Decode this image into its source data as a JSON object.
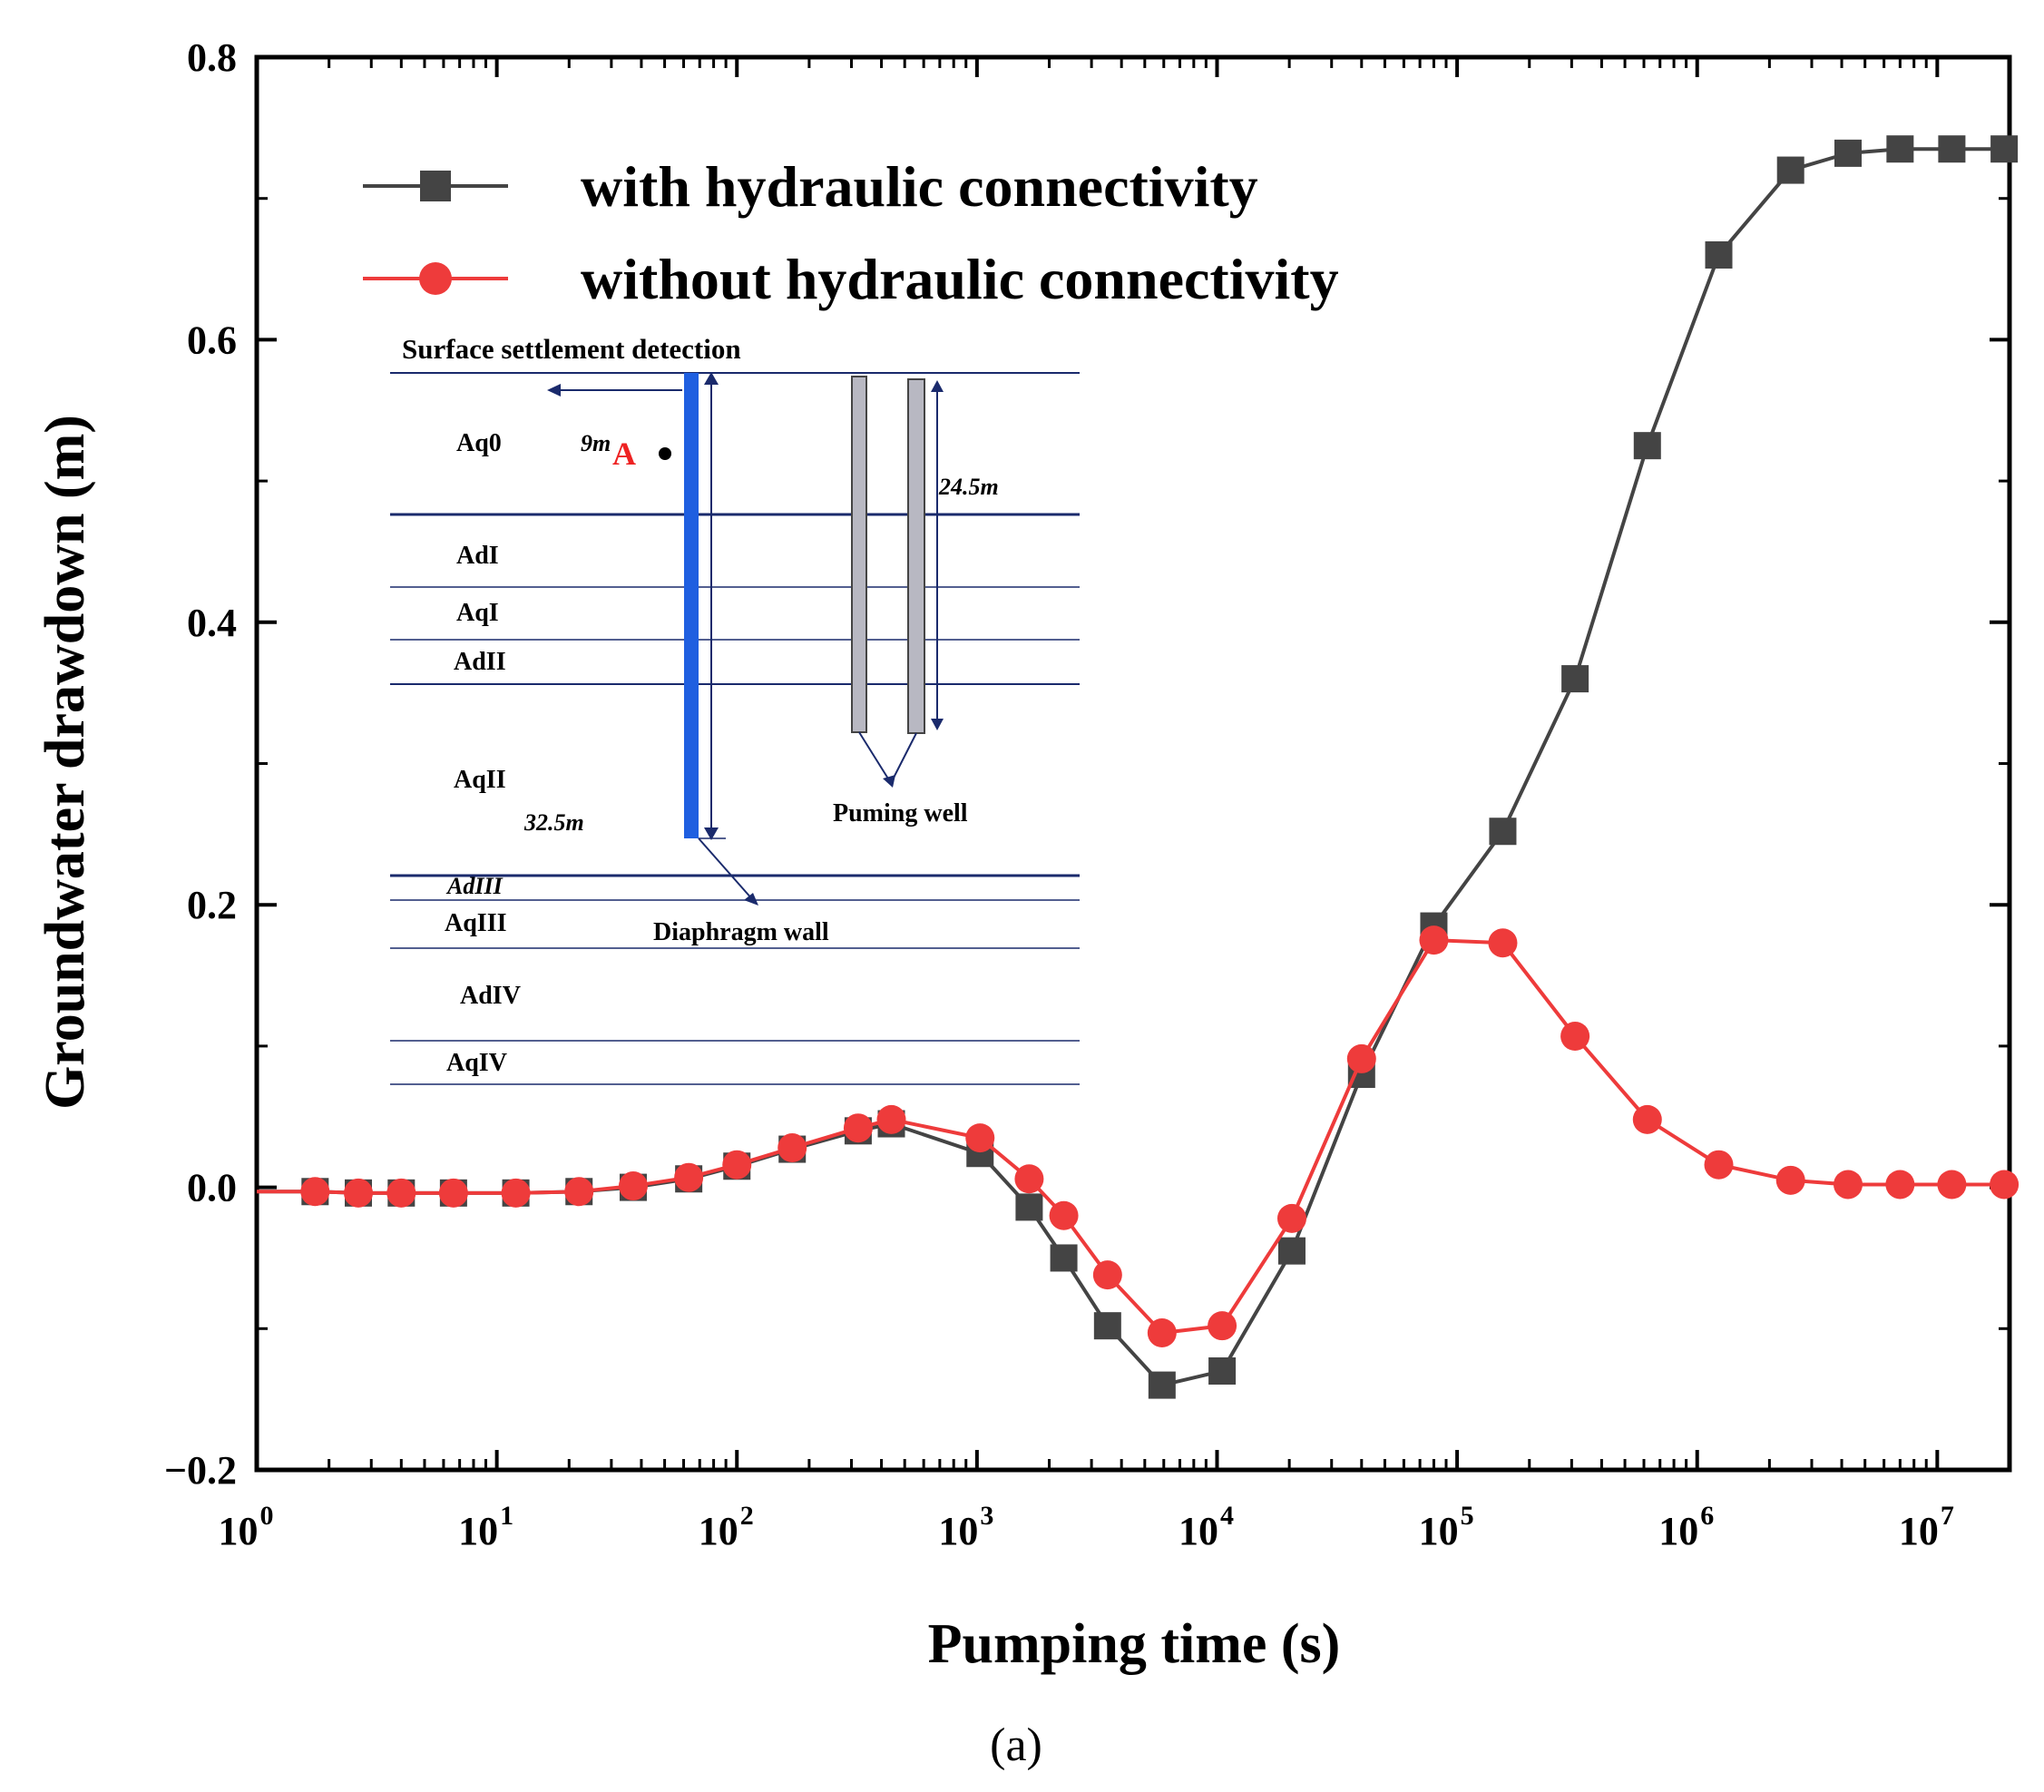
{
  "chart_data": {
    "type": "line",
    "x_scale": "log",
    "xlabel": "Pumping time (s)",
    "ylabel": "Groundwater drawdown (m)",
    "xlim": [
      1,
      20000000
    ],
    "ylim": [
      -0.2,
      0.8
    ],
    "y_ticks": [
      "0.8",
      "0.6",
      "0.4",
      "0.2",
      "0.0",
      "−0.2"
    ],
    "x_ticks": [
      {
        "base": "10",
        "exp": "0"
      },
      {
        "base": "10",
        "exp": "1"
      },
      {
        "base": "10",
        "exp": "2"
      },
      {
        "base": "10",
        "exp": "3"
      },
      {
        "base": "10",
        "exp": "4"
      },
      {
        "base": "10",
        "exp": "5"
      },
      {
        "base": "10",
        "exp": "6"
      },
      {
        "base": "10",
        "exp": "7"
      }
    ],
    "legend_position": "top-left",
    "series": [
      {
        "name": "with hydraulic connectivity",
        "color": "#444444",
        "marker": "square",
        "x": [
          1.75,
          2.65,
          4,
          6.6,
          12,
          22,
          37,
          63,
          100,
          170,
          320,
          440,
          1030,
          1650,
          2300,
          3500,
          5900,
          10500,
          20500,
          40000,
          80000,
          155000,
          310000,
          620000,
          1230000,
          2450000,
          4250000,
          7000000,
          11500000,
          19000000
        ],
        "y": [
          -0.003,
          -0.004,
          -0.004,
          -0.004,
          -0.004,
          -0.003,
          0.0,
          0.006,
          0.015,
          0.027,
          0.04,
          0.045,
          0.024,
          -0.014,
          -0.05,
          -0.098,
          -0.14,
          -0.13,
          -0.045,
          0.08,
          0.185,
          0.252,
          0.36,
          0.525,
          0.66,
          0.72,
          0.732,
          0.735,
          0.735,
          0.735
        ]
      },
      {
        "name": "without hydraulic connectivity",
        "color": "#ee3b3b",
        "marker": "circle",
        "x": [
          1.75,
          2.65,
          4,
          6.6,
          12,
          22,
          37,
          63,
          100,
          170,
          320,
          440,
          1030,
          1650,
          2300,
          3500,
          5900,
          10500,
          20500,
          40000,
          80000,
          155000,
          310000,
          620000,
          1230000,
          2450000,
          4250000,
          7000000,
          11500000,
          19000000
        ],
        "y": [
          -0.003,
          -0.004,
          -0.004,
          -0.004,
          -0.004,
          -0.003,
          0.001,
          0.007,
          0.016,
          0.028,
          0.042,
          0.048,
          0.035,
          0.006,
          -0.02,
          -0.062,
          -0.103,
          -0.098,
          -0.022,
          0.091,
          0.175,
          0.173,
          0.107,
          0.048,
          0.016,
          0.005,
          0.002,
          0.002,
          0.002,
          0.002
        ]
      }
    ]
  },
  "inset": {
    "title": "Surface settlement detection",
    "layers": [
      "Aq0",
      "AdI",
      "AqI",
      "AdII",
      "AqII",
      "AdIII",
      "AqIII",
      "AdIV",
      "AqIV"
    ],
    "dist_label": "9m",
    "point_label": "A",
    "wall_depth": "32.5m",
    "well_depth": "24.5m",
    "well_label": "Puming well",
    "wall_label": "Diaphragm wall"
  },
  "caption": "(a)"
}
